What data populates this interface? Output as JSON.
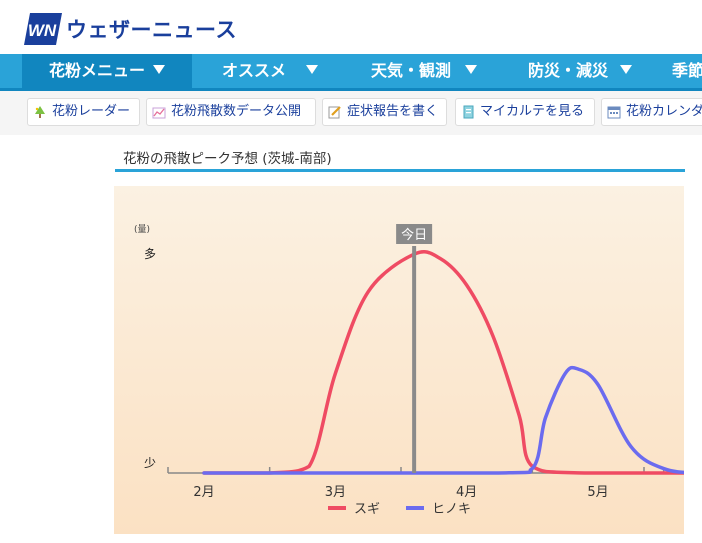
{
  "header": {
    "logo_mark": "WN",
    "logo_text": "ウェザーニュース"
  },
  "nav": {
    "items": [
      {
        "label": "花粉メニュー",
        "icon": "chevron-down-icon",
        "active": true
      },
      {
        "label": "オススメ",
        "icon": "chevron-down-icon"
      },
      {
        "label": "天気・観測",
        "icon": "chevron-down-icon"
      },
      {
        "label": "防災・減災",
        "icon": "chevron-down-icon"
      },
      {
        "label": "季節"
      }
    ]
  },
  "subnav": {
    "items": [
      {
        "label": "花粉レーダー",
        "icon": "tree-icon"
      },
      {
        "label": "花粉飛散数データ公開",
        "icon": "chart-icon"
      },
      {
        "label": "症状報告を書く",
        "icon": "pencil-icon"
      },
      {
        "label": "マイカルテを見る",
        "icon": "chart-card-icon"
      },
      {
        "label": "花粉カレンダー",
        "icon": "calendar-icon"
      }
    ]
  },
  "section": {
    "title": "花粉の飛散ピーク予想 (茨城-南部)"
  },
  "colors": {
    "accent": "#2aa3d8",
    "sugi": "#ef4b63",
    "hinoki": "#6b6bef",
    "today_marker": "#8a8a8a"
  },
  "chart_data": {
    "type": "line",
    "y_unit_label": "(量)",
    "y_top_label": "多",
    "y_bottom_label": "少",
    "x_ticks": [
      "2月",
      "3月",
      "4月",
      "5月"
    ],
    "today_label": "今日",
    "today_x": 2.6,
    "series": [
      {
        "name": "スギ",
        "color": "#ef4b63",
        "points": [
          [
            1.0,
            0.0
          ],
          [
            1.5,
            0.0
          ],
          [
            1.8,
            0.03
          ],
          [
            2.0,
            0.45
          ],
          [
            2.25,
            0.82
          ],
          [
            2.6,
            0.99
          ],
          [
            2.8,
            0.97
          ],
          [
            3.0,
            0.85
          ],
          [
            3.2,
            0.62
          ],
          [
            3.4,
            0.26
          ],
          [
            3.5,
            0.03
          ],
          [
            3.9,
            0.0
          ],
          [
            5.3,
            0.0
          ]
        ]
      },
      {
        "name": "ヒノキ",
        "color": "#6b6bef",
        "points": [
          [
            1.0,
            0.0
          ],
          [
            3.2,
            0.0
          ],
          [
            3.5,
            0.02
          ],
          [
            3.6,
            0.25
          ],
          [
            3.75,
            0.45
          ],
          [
            3.85,
            0.47
          ],
          [
            4.0,
            0.4
          ],
          [
            4.25,
            0.12
          ],
          [
            4.5,
            0.02
          ],
          [
            4.8,
            0.0
          ],
          [
            5.3,
            0.0
          ]
        ]
      }
    ],
    "ylim": [
      0,
      1
    ],
    "legend_position": "bottom-center"
  }
}
